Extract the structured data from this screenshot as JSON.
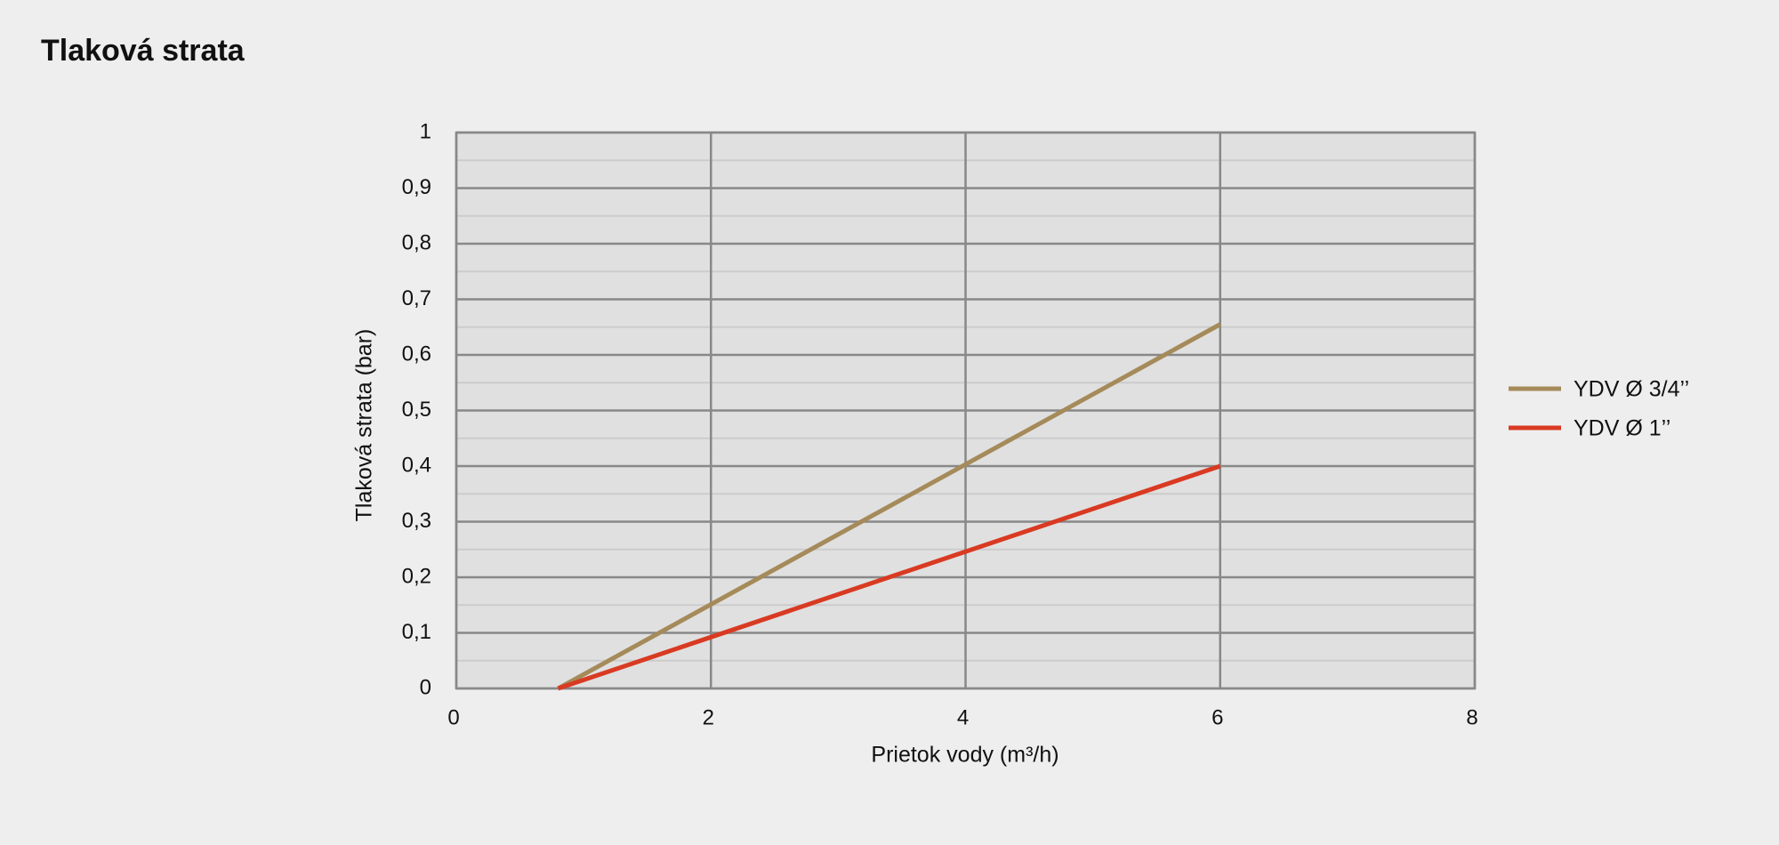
{
  "chart_data": {
    "type": "line",
    "title": "Tlaková strata",
    "xlabel": "Prietok vody (m³/h)",
    "ylabel": "Tlaková strata (bar)",
    "xlim": [
      0,
      8
    ],
    "xticks": [
      0,
      2,
      4,
      6,
      8
    ],
    "ylim": [
      0,
      1
    ],
    "yticks": [
      0,
      {
        "value": 0.1,
        "label": "0,1"
      },
      {
        "value": 0.2,
        "label": "0,2"
      },
      {
        "value": 0.3,
        "label": "0,3"
      },
      {
        "value": 0.4,
        "label": "0,4"
      },
      {
        "value": 0.5,
        "label": "0,5"
      },
      {
        "value": 0.6,
        "label": "0,6"
      },
      {
        "value": 0.7,
        "label": "0,7"
      },
      {
        "value": 0.8,
        "label": "0,8"
      },
      {
        "value": 0.9,
        "label": "0,9"
      },
      1
    ],
    "grid": true,
    "minor_grid": true,
    "legend": "right",
    "series": [
      {
        "name": "YDV Ø 3/4’’",
        "color": "#a58a5a",
        "x": [
          0.8,
          6
        ],
        "values": [
          0,
          0.655
        ]
      },
      {
        "name": "YDV Ø 1’’",
        "color": "#d93a22",
        "x": [
          0.8,
          6
        ],
        "values": [
          0,
          0.4
        ]
      }
    ]
  }
}
